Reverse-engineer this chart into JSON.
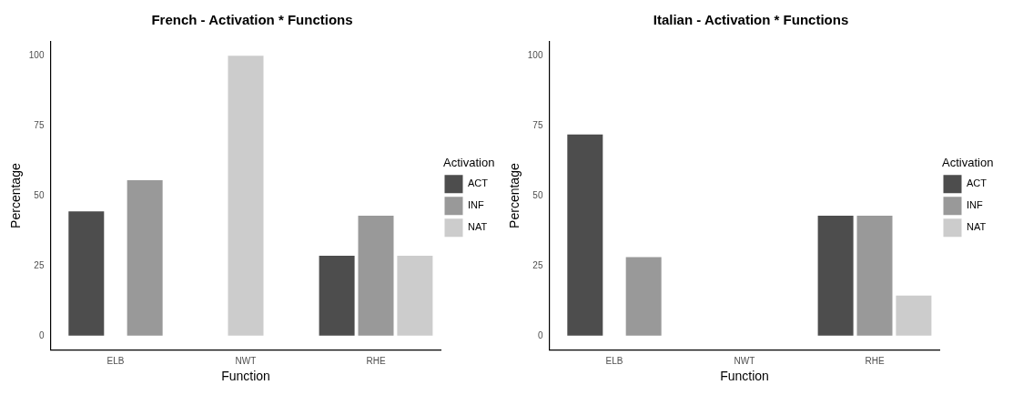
{
  "chart_data": [
    {
      "type": "bar",
      "title": "French - Activation * Functions",
      "xlabel": "Function",
      "ylabel": "Percentage",
      "legend_title": "Activation",
      "legend": "right",
      "categories": [
        "ELB",
        "NWT",
        "RHE"
      ],
      "ylim": [
        -5,
        105
      ],
      "yticks": [
        0,
        25,
        50,
        75,
        100
      ],
      "series": [
        {
          "name": "ACT",
          "color": "#4d4d4d",
          "values": [
            44.4,
            null,
            28.6
          ]
        },
        {
          "name": "INF",
          "color": "#999999",
          "values": [
            55.6,
            null,
            42.9
          ]
        },
        {
          "name": "NAT",
          "color": "#cccccc",
          "values": [
            null,
            100,
            28.6
          ]
        }
      ]
    },
    {
      "type": "bar",
      "title": "Italian - Activation * Functions",
      "xlabel": "Function",
      "ylabel": "Percentage",
      "legend_title": "Activation",
      "legend": "right",
      "categories": [
        "ELB",
        "NWT",
        "RHE"
      ],
      "ylim": [
        -5,
        105
      ],
      "yticks": [
        0,
        25,
        50,
        75,
        100
      ],
      "series": [
        {
          "name": "ACT",
          "color": "#4d4d4d",
          "values": [
            71.9,
            null,
            42.9
          ]
        },
        {
          "name": "INF",
          "color": "#999999",
          "values": [
            28.1,
            null,
            42.9
          ]
        },
        {
          "name": "NAT",
          "color": "#cccccc",
          "values": [
            null,
            null,
            14.3
          ]
        }
      ]
    }
  ]
}
